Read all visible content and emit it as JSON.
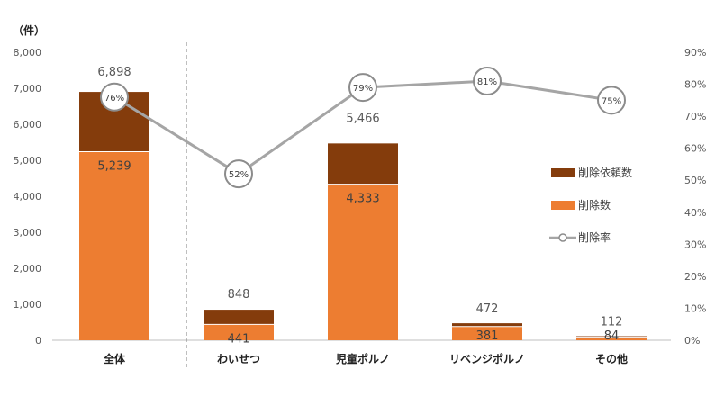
{
  "chart_data": {
    "type": "bar",
    "unit_label": "（件）",
    "categories": [
      "全体",
      "わいせつ",
      "児童ポルノ",
      "リベンジポルノ",
      "その他"
    ],
    "series": [
      {
        "name": "削除依頼数",
        "values": [
          6898,
          848,
          5466,
          472,
          112
        ],
        "color": "#843c0c"
      },
      {
        "name": "削除数",
        "values": [
          5239,
          441,
          4333,
          381,
          84
        ],
        "color": "#ed7d31"
      },
      {
        "name": "削除率",
        "values": [
          76,
          52,
          79,
          81,
          75
        ],
        "color": "#a5a5a5",
        "type": "line",
        "axis": "right"
      }
    ],
    "left_axis": {
      "min": 0,
      "max": 8000,
      "ticks": [
        "0",
        "1,000",
        "2,000",
        "3,000",
        "4,000",
        "5,000",
        "6,000",
        "7,000",
        "8,000"
      ]
    },
    "right_axis": {
      "min": 0,
      "max": 90,
      "ticks": [
        "0%",
        "10%",
        "20%",
        "30%",
        "40%",
        "50%",
        "60%",
        "70%",
        "80%",
        "90%"
      ]
    },
    "request_labels": [
      "6,898",
      "848",
      "5,466",
      "472",
      "112"
    ],
    "removal_labels": [
      "5,239",
      "441",
      "4,333",
      "381",
      "84"
    ],
    "rate_labels": [
      "76%",
      "52%",
      "79%",
      "81%",
      "75%"
    ],
    "legend": {
      "position": "right",
      "items": [
        "削除依頼数",
        "削除数",
        "削除率"
      ]
    },
    "grid": false
  }
}
